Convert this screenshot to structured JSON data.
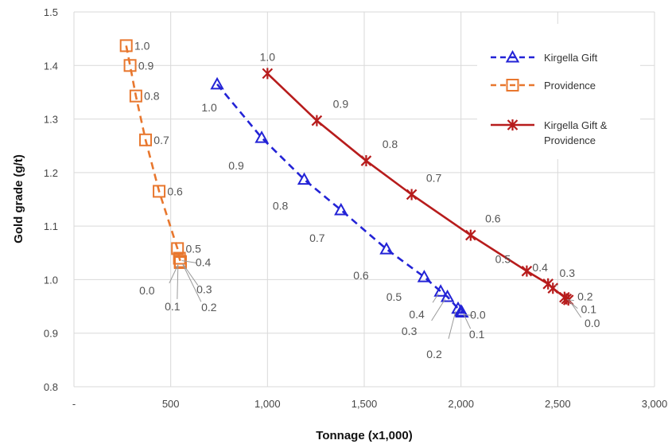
{
  "chart_data": {
    "type": "line",
    "title": "",
    "xlabel": "Tonnage (x1,000)",
    "ylabel": "Gold grade (g/t)",
    "xlim": [
      0,
      3000
    ],
    "ylim": [
      0.8,
      1.5
    ],
    "x_ticks": [
      0,
      500,
      1000,
      1500,
      2000,
      2500,
      3000
    ],
    "x_tick_labels": [
      "-",
      "500",
      "1,000",
      "1,500",
      "2,000",
      "2,500",
      "3,000"
    ],
    "y_ticks": [
      0.8,
      0.9,
      1.0,
      1.1,
      1.2,
      1.3,
      1.4,
      1.5
    ],
    "y_tick_labels": [
      "0.8",
      "0.9",
      "1.0",
      "1.1",
      "1.2",
      "1.3",
      "1.4",
      "1.5"
    ],
    "grid": true,
    "legend_position": "top-right",
    "series": [
      {
        "name": "Kirgella Gift",
        "color": "#2323d6",
        "line_style": "dashed",
        "marker": "triangle-open",
        "points": [
          {
            "x": 740,
            "y": 1.365,
            "label": "1.0"
          },
          {
            "x": 970,
            "y": 1.265,
            "label": "0.9"
          },
          {
            "x": 1190,
            "y": 1.187,
            "label": "0.8"
          },
          {
            "x": 1380,
            "y": 1.13,
            "label": "0.7"
          },
          {
            "x": 1615,
            "y": 1.057,
            "label": "0.6"
          },
          {
            "x": 1810,
            "y": 1.005,
            "label": "0.5"
          },
          {
            "x": 1895,
            "y": 0.978,
            "label": "0.4"
          },
          {
            "x": 1930,
            "y": 0.968,
            "label": "0.3"
          },
          {
            "x": 1985,
            "y": 0.946,
            "label": "0.2"
          },
          {
            "x": 2000,
            "y": 0.941,
            "label": "0.1"
          },
          {
            "x": 2005,
            "y": 0.939,
            "label": "0.0"
          }
        ]
      },
      {
        "name": "Providence",
        "color": "#e8772e",
        "line_style": "dashed",
        "marker": "square-open",
        "points": [
          {
            "x": 270,
            "y": 1.437,
            "label": "1.0"
          },
          {
            "x": 290,
            "y": 1.4,
            "label": "0.9"
          },
          {
            "x": 320,
            "y": 1.343,
            "label": "0.8"
          },
          {
            "x": 370,
            "y": 1.261,
            "label": "0.7"
          },
          {
            "x": 440,
            "y": 1.165,
            "label": "0.6"
          },
          {
            "x": 535,
            "y": 1.058,
            "label": "0.5"
          },
          {
            "x": 545,
            "y": 1.04,
            "label": "0.4"
          },
          {
            "x": 550,
            "y": 1.034,
            "label": "0.3"
          },
          {
            "x": 550,
            "y": 1.033,
            "label": "0.2"
          },
          {
            "x": 550,
            "y": 1.032,
            "label": "0.1"
          },
          {
            "x": 550,
            "y": 1.032,
            "label": "0.0"
          }
        ]
      },
      {
        "name": "Kirgella Gift & Providence",
        "color": "#b71c1c",
        "line_style": "solid",
        "marker": "star",
        "points": [
          {
            "x": 1000,
            "y": 1.385,
            "label": "1.0"
          },
          {
            "x": 1255,
            "y": 1.297,
            "label": "0.9"
          },
          {
            "x": 1510,
            "y": 1.222,
            "label": "0.8"
          },
          {
            "x": 1745,
            "y": 1.159,
            "label": "0.7"
          },
          {
            "x": 2050,
            "y": 1.083,
            "label": "0.6"
          },
          {
            "x": 2340,
            "y": 1.016,
            "label": "0.5"
          },
          {
            "x": 2450,
            "y": 0.992,
            "label": "0.4"
          },
          {
            "x": 2475,
            "y": 0.984,
            "label": "0.3"
          },
          {
            "x": 2535,
            "y": 0.967,
            "label": "0.2"
          },
          {
            "x": 2545,
            "y": 0.964,
            "label": "0.1"
          },
          {
            "x": 2555,
            "y": 0.962,
            "label": "0.0"
          }
        ]
      }
    ]
  }
}
